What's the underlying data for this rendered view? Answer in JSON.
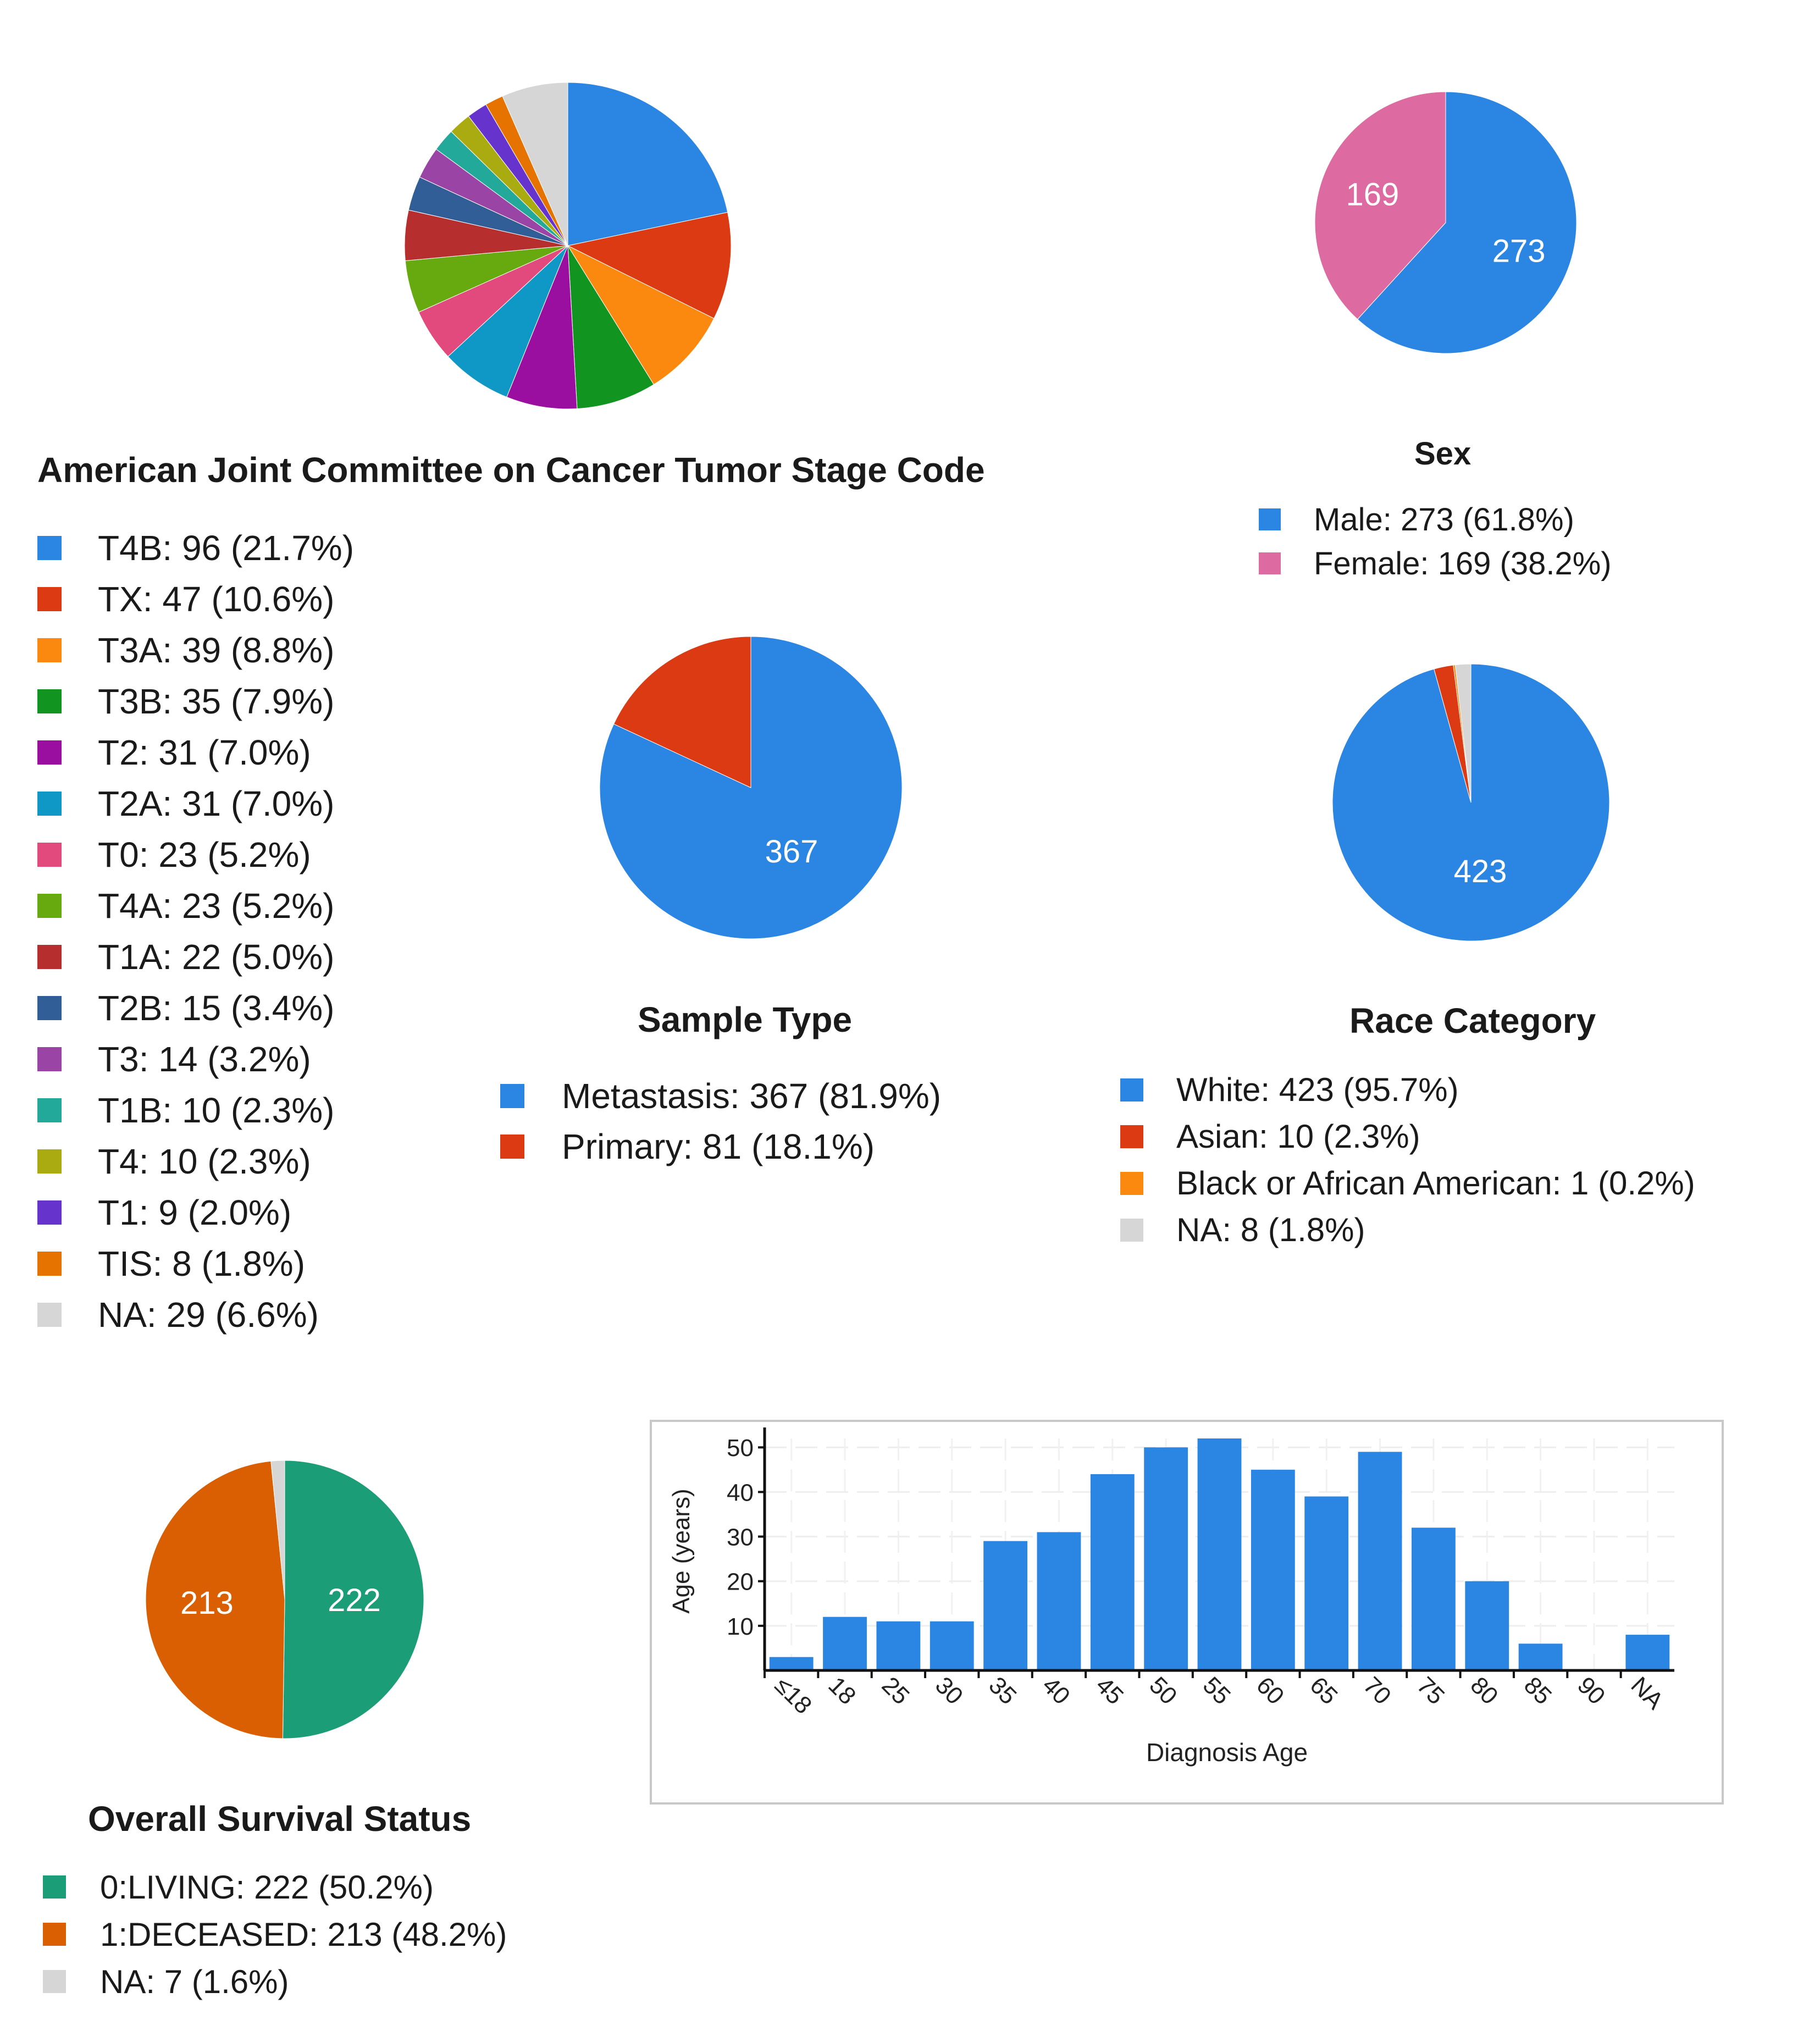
{
  "chart_data": [
    {
      "type": "pie",
      "id": "tumor_stage",
      "title": "American Joint Committee on Cancer Tumor Stage Code",
      "slices": [
        {
          "label": "T4B",
          "value": 96,
          "percent": "21.7%",
          "color": "#2b86e3",
          "text": "T4B: 96 (21.7%)"
        },
        {
          "label": "TX",
          "value": 47,
          "percent": "10.6%",
          "color": "#dc3a12",
          "text": "TX: 47 (10.6%)"
        },
        {
          "label": "T3A",
          "value": 39,
          "percent": "8.8%",
          "color": "#fb890f",
          "text": "T3A: 39 (8.8%)"
        },
        {
          "label": "T3B",
          "value": 35,
          "percent": "7.9%",
          "color": "#119420",
          "text": "T3B: 35 (7.9%)"
        },
        {
          "label": "T2",
          "value": 31,
          "percent": "7.0%",
          "color": "#9a0fa0",
          "text": "T2: 31 (7.0%)"
        },
        {
          "label": "T2A",
          "value": 31,
          "percent": "7.0%",
          "color": "#0f98c6",
          "text": "T2A: 31 (7.0%)"
        },
        {
          "label": "T0",
          "value": 23,
          "percent": "5.2%",
          "color": "#e2497c",
          "text": "T0: 23 (5.2%)"
        },
        {
          "label": "T4A",
          "value": 23,
          "percent": "5.2%",
          "color": "#66aa10",
          "text": "T4A: 23 (5.2%)"
        },
        {
          "label": "T1A",
          "value": 22,
          "percent": "5.0%",
          "color": "#b72e2e",
          "text": "T1A: 22 (5.0%)"
        },
        {
          "label": "T2B",
          "value": 15,
          "percent": "3.4%",
          "color": "#325e97",
          "text": "T2B: 15 (3.4%)"
        },
        {
          "label": "T3",
          "value": 14,
          "percent": "3.2%",
          "color": "#9a45a6",
          "text": "T3: 14 (3.2%)"
        },
        {
          "label": "T1B",
          "value": 10,
          "percent": "2.3%",
          "color": "#22a99a",
          "text": "T1B: 10 (2.3%)"
        },
        {
          "label": "T4",
          "value": 10,
          "percent": "2.3%",
          "color": "#aaaa11",
          "text": "T4: 10 (2.3%)"
        },
        {
          "label": "T1",
          "value": 9,
          "percent": "2.0%",
          "color": "#6633cc",
          "text": "T1: 9 (2.0%)"
        },
        {
          "label": "TIS",
          "value": 8,
          "percent": "1.8%",
          "color": "#e67300",
          "text": "TIS: 8 (1.8%)"
        },
        {
          "label": "NA",
          "value": 29,
          "percent": "6.6%",
          "color": "#d6d6d6",
          "text": "NA: 29 (6.6%)"
        }
      ]
    },
    {
      "type": "pie",
      "id": "sex",
      "title": "Sex",
      "slices": [
        {
          "label": "Male",
          "value": 273,
          "percent": "61.8%",
          "color": "#2b86e3",
          "text": "Male: 273 (61.8%)",
          "display": "273"
        },
        {
          "label": "Female",
          "value": 169,
          "percent": "38.2%",
          "color": "#dd6aa0",
          "text": "Female: 169 (38.2%)",
          "display": "169"
        }
      ]
    },
    {
      "type": "pie",
      "id": "sample_type",
      "title": "Sample Type",
      "slices": [
        {
          "label": "Metastasis",
          "value": 367,
          "percent": "81.9%",
          "color": "#2b86e3",
          "text": "Metastasis: 367 (81.9%)",
          "display": "367"
        },
        {
          "label": "Primary",
          "value": 81,
          "percent": "18.1%",
          "color": "#dc3a12",
          "text": "Primary: 81 (18.1%)"
        }
      ]
    },
    {
      "type": "pie",
      "id": "race",
      "title": "Race Category",
      "slices": [
        {
          "label": "White",
          "value": 423,
          "percent": "95.7%",
          "color": "#2b86e3",
          "text": "White: 423 (95.7%)",
          "display": "423"
        },
        {
          "label": "Asian",
          "value": 10,
          "percent": "2.3%",
          "color": "#dc3a12",
          "text": "Asian: 10 (2.3%)"
        },
        {
          "label": "Black or African American",
          "value": 1,
          "percent": "0.2%",
          "color": "#fb890f",
          "text": "Black or African American: 1 (0.2%)"
        },
        {
          "label": "NA",
          "value": 8,
          "percent": "1.8%",
          "color": "#d6d6d6",
          "text": "NA: 8 (1.8%)"
        }
      ]
    },
    {
      "type": "pie",
      "id": "survival",
      "title": "Overall Survival Status",
      "slices": [
        {
          "label": "0:LIVING",
          "value": 222,
          "percent": "50.2%",
          "color": "#1b9e77",
          "text": "0:LIVING: 222 (50.2%)",
          "display": "222"
        },
        {
          "label": "1:DECEASED",
          "value": 213,
          "percent": "48.2%",
          "color": "#d95f02",
          "text": "1:DECEASED: 213 (48.2%)",
          "display": "213"
        },
        {
          "label": "NA",
          "value": 7,
          "percent": "1.6%",
          "color": "#d6d6d6",
          "text": "NA: 7 (1.6%)"
        }
      ]
    },
    {
      "type": "bar",
      "id": "diagnosis_age",
      "xlabel": "Diagnosis Age",
      "ylabel": "Age (years)",
      "ylim": [
        0,
        52
      ],
      "yticks": [
        10,
        20,
        30,
        40,
        50
      ],
      "bar_color": "#2b86e3",
      "tick_labels": [
        "≤18",
        "18",
        "25",
        "30",
        "35",
        "40",
        "45",
        "50",
        "55",
        "60",
        "65",
        "70",
        "75",
        "80",
        "85",
        "90",
        "NA"
      ],
      "values": [
        3,
        12,
        11,
        11,
        29,
        31,
        44,
        50,
        52,
        45,
        39,
        49,
        32,
        20,
        6,
        0,
        8
      ]
    }
  ]
}
